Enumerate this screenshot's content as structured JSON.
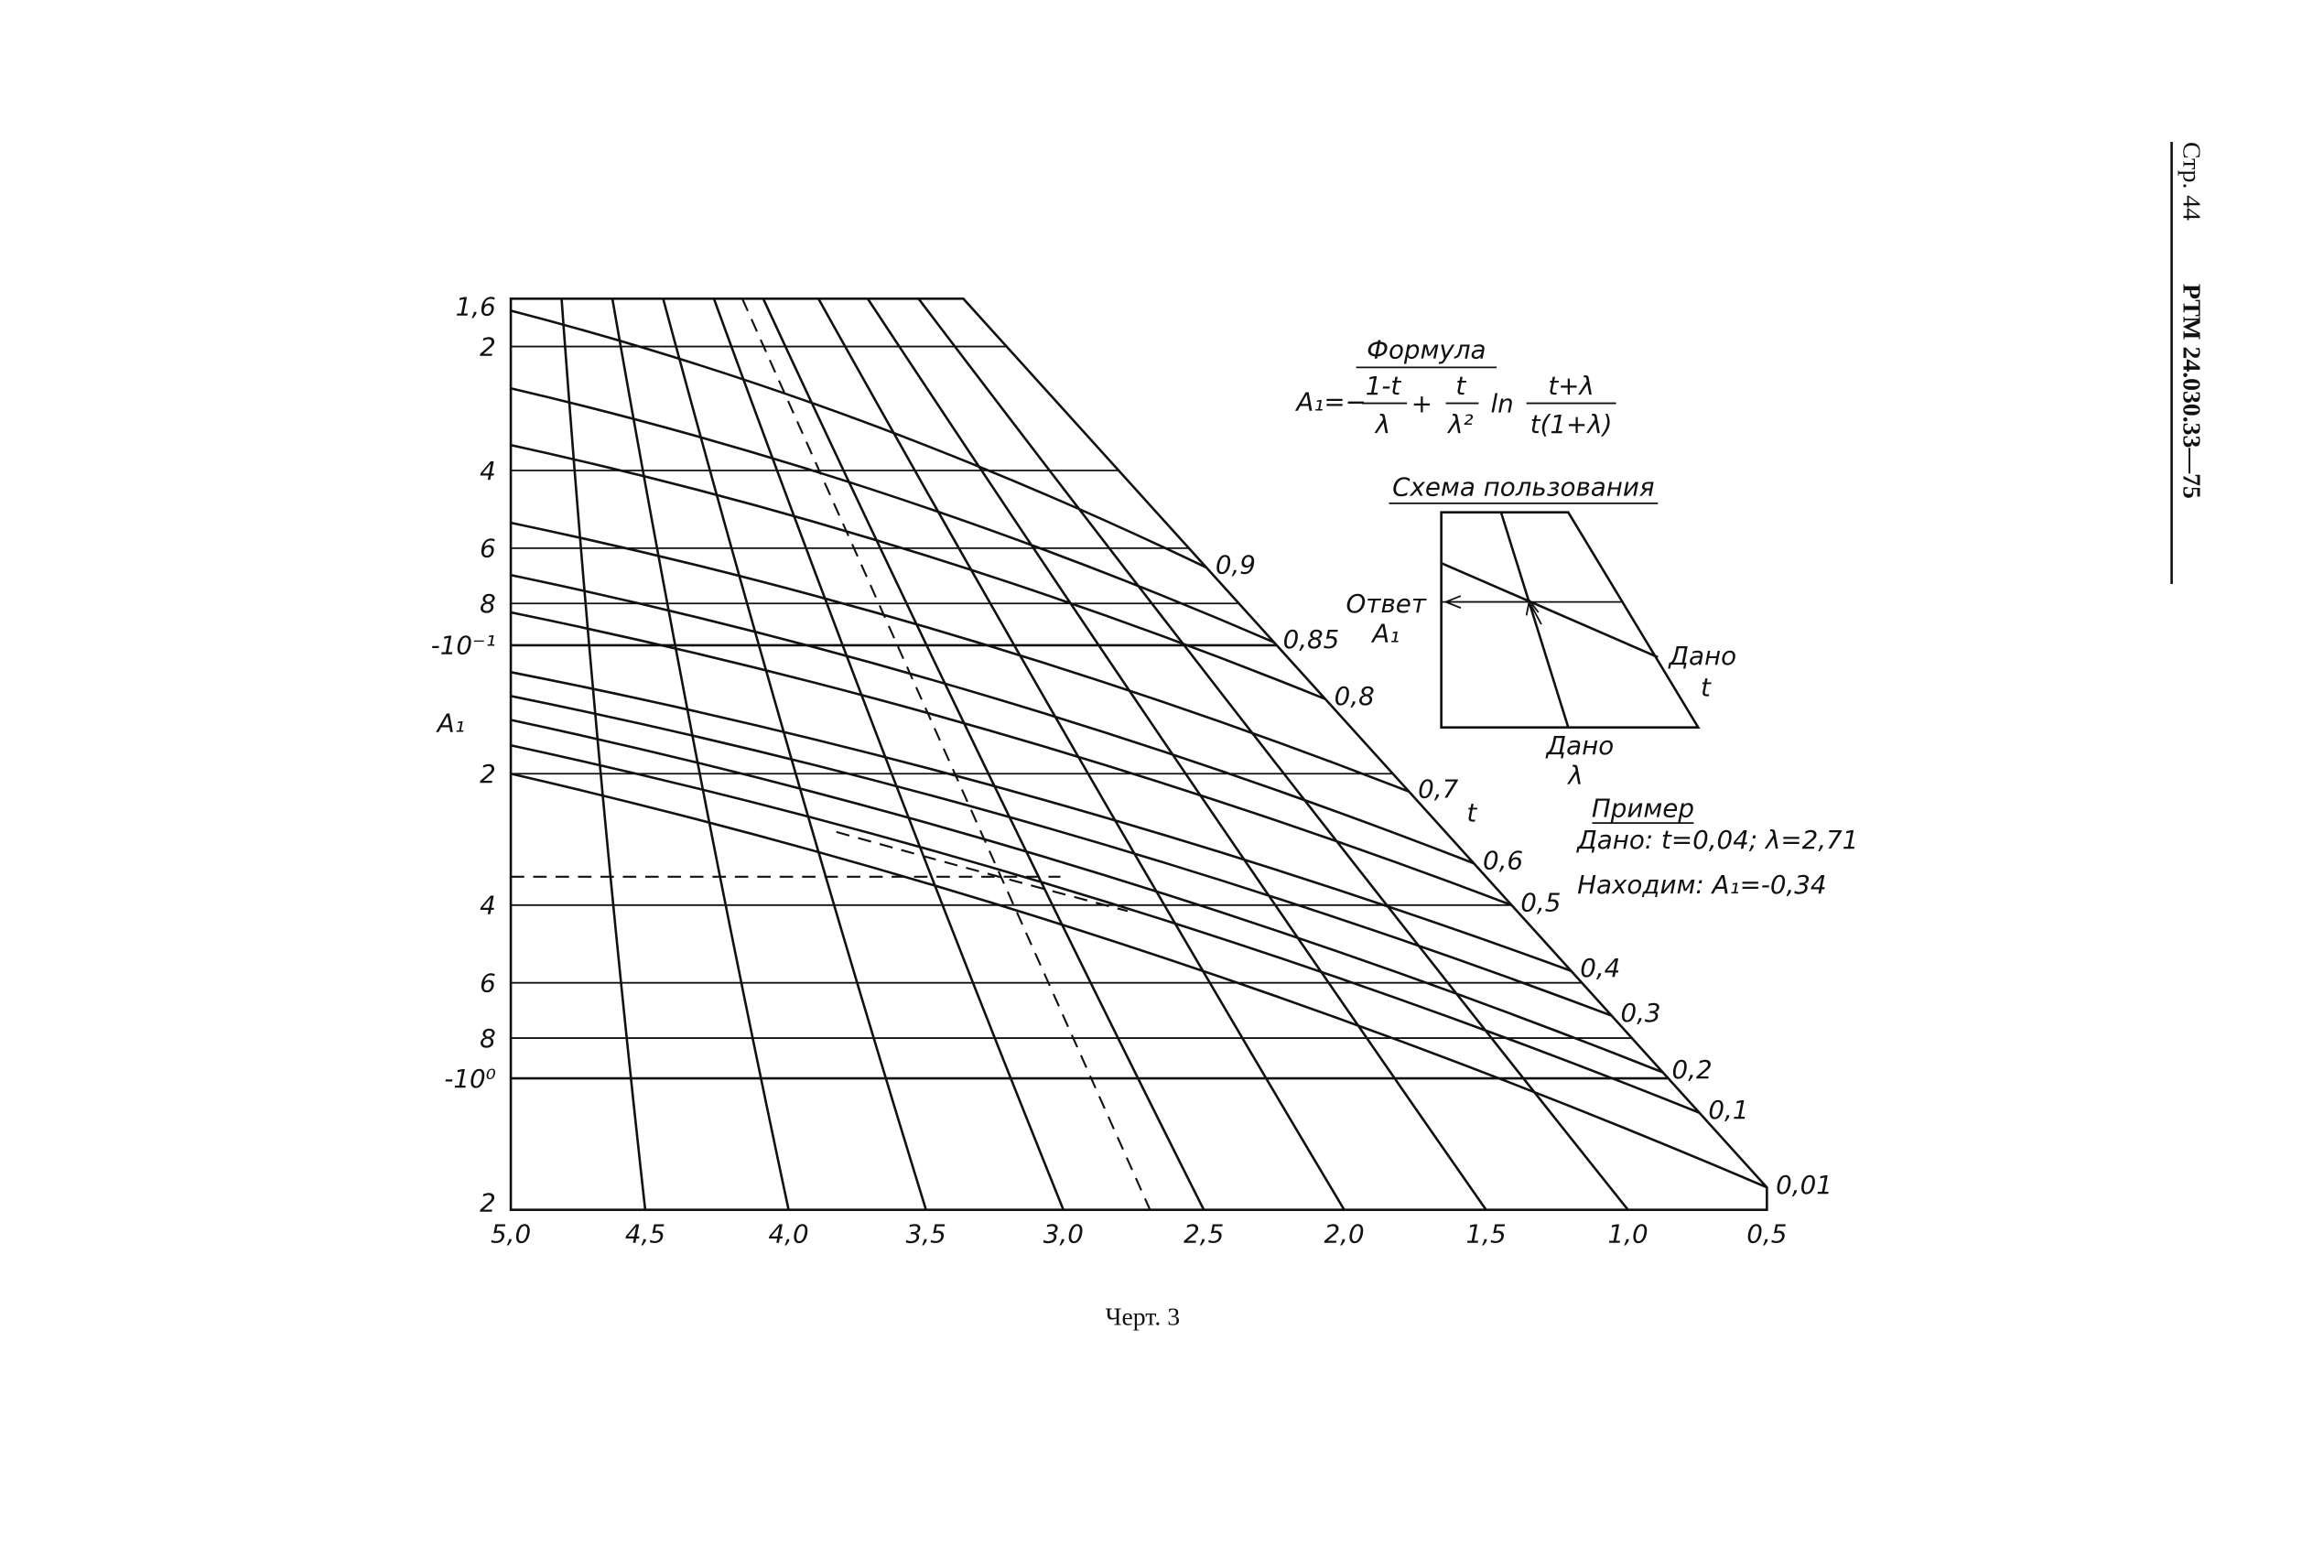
{
  "side_header": {
    "page": "Стр. 44",
    "doc": "РТМ 24.030.33—75"
  },
  "formula": {
    "title": "Формула",
    "lhs": "A₁=−",
    "n1": "1-t",
    "d1": "λ",
    "plus": "+",
    "n2": "t",
    "d2": "λ²",
    "ln": "ln",
    "n3": "t+λ",
    "d3": "t(1+λ)"
  },
  "scheme": {
    "title": "Схема пользования",
    "answer": "Ответ",
    "answer_var": "A₁",
    "given_t": "Дано",
    "t": "t",
    "given_lambda": "Дано",
    "lambda": "λ"
  },
  "example": {
    "title": "Пример",
    "given": "Дано:  t=0,04;  λ=2,71",
    "result": "Находим:  A₁=-0,34"
  },
  "nomogram": {
    "y_label": "A₁",
    "y_ticks": [
      "1,6",
      "2",
      "4",
      "6",
      "8",
      "-10⁻¹",
      "2",
      "4",
      "6",
      "8",
      "-10⁰",
      "2"
    ],
    "x_ticks": [
      "5,0",
      "4,5",
      "4,0",
      "3,5",
      "3,0",
      "2,5",
      "2,0",
      "1,5",
      "1,0",
      "0,5"
    ],
    "t_name": "t",
    "t_labels": [
      "0,9",
      "0,85",
      "0,8",
      "0,7",
      "0,6",
      "0,5",
      "0,4",
      "0,3",
      "0,2",
      "0,1",
      "0,01"
    ]
  },
  "caption": "Черт. 3"
}
